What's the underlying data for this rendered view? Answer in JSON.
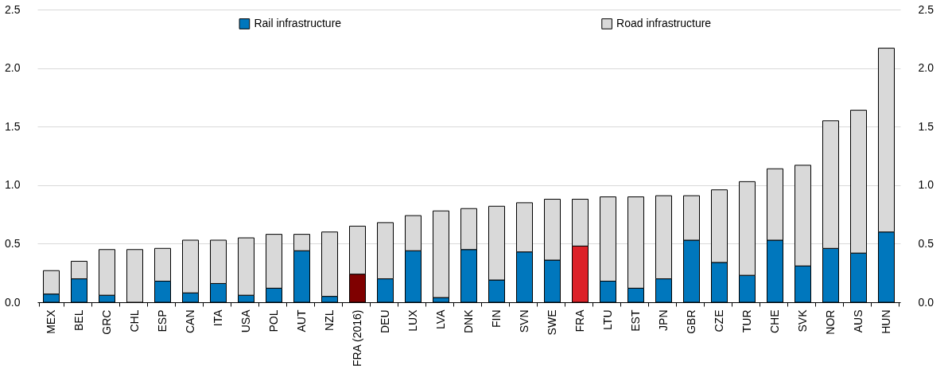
{
  "chart_data": {
    "type": "bar",
    "stacked": true,
    "categories": [
      "MEX",
      "BEL",
      "GRC",
      "CHL",
      "ESP",
      "CAN",
      "ITA",
      "USA",
      "POL",
      "AUT",
      "NZL",
      "FRA (2016)",
      "DEU",
      "LUX",
      "LVA",
      "DNK",
      "FIN",
      "SVN",
      "SWE",
      "FRA",
      "LTU",
      "EST",
      "JPN",
      "GBR",
      "CZE",
      "TUR",
      "CHE",
      "SVK",
      "NOR",
      "AUS",
      "HUN"
    ],
    "series": [
      {
        "name": "Rail infrastructure",
        "color": "#0077bd",
        "colors": [
          "#0077bd",
          "#0077bd",
          "#0077bd",
          "#0077bd",
          "#0077bd",
          "#0077bd",
          "#0077bd",
          "#0077bd",
          "#0077bd",
          "#0077bd",
          "#0077bd",
          "#7f0000",
          "#0077bd",
          "#0077bd",
          "#0077bd",
          "#0077bd",
          "#0077bd",
          "#0077bd",
          "#0077bd",
          "#dc2128",
          "#0077bd",
          "#0077bd",
          "#0077bd",
          "#0077bd",
          "#0077bd",
          "#0077bd",
          "#0077bd",
          "#0077bd",
          "#0077bd",
          "#0077bd",
          "#0077bd"
        ],
        "values": [
          0.07,
          0.2,
          0.06,
          0,
          0.18,
          0.08,
          0.16,
          0.06,
          0.12,
          0.44,
          0.05,
          0.24,
          0.2,
          0.44,
          0.04,
          0.45,
          0.19,
          0.43,
          0.36,
          0.48,
          0.18,
          0.12,
          0.2,
          0.53,
          0.34,
          0.23,
          0.53,
          0.31,
          0.46,
          0.42,
          0.6
        ]
      },
      {
        "name": "Road infrastructure",
        "color": "#d9d9d9",
        "values": [
          0.2,
          0.15,
          0.39,
          0.45,
          0.28,
          0.45,
          0.37,
          0.49,
          0.46,
          0.14,
          0.55,
          0.41,
          0.48,
          0.3,
          0.74,
          0.35,
          0.63,
          0.42,
          0.52,
          0.4,
          0.72,
          0.78,
          0.71,
          0.38,
          0.62,
          0.8,
          0.61,
          0.86,
          1.09,
          1.22,
          1.57
        ]
      }
    ],
    "ylim": [
      0,
      2.5
    ],
    "yticks": [
      {
        "value": 0,
        "label": "0.0"
      },
      0.5,
      {
        "value": 1,
        "label": "1.0"
      },
      1.5,
      {
        "value": 2,
        "label": "2.0"
      },
      2.5
    ],
    "y2lim": [
      0,
      2.5
    ],
    "y2ticks": [
      {
        "value": 0,
        "label": "0.0"
      },
      0.5,
      {
        "value": 1,
        "label": "1.0"
      },
      1.5,
      {
        "value": 2,
        "label": "2.0"
      },
      2.5
    ],
    "grid": "y",
    "legend": "top"
  }
}
